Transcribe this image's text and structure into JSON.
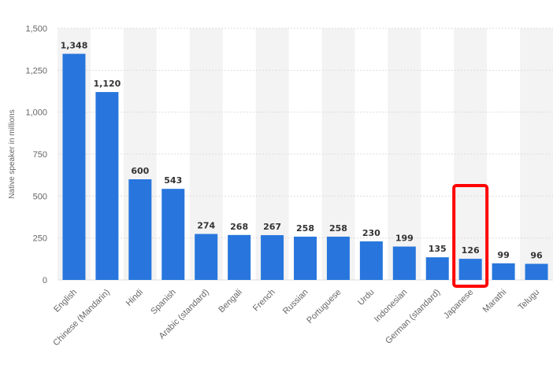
{
  "chart_data": {
    "type": "bar",
    "title": "",
    "xlabel": "",
    "ylabel": "Native speaker in millions",
    "ylim": [
      0,
      1500
    ],
    "yticks": [
      "0",
      "250",
      "500",
      "750",
      "1,000",
      "1,250",
      "1,500"
    ],
    "ytick_values": [
      0,
      250,
      500,
      750,
      1000,
      1250,
      1500
    ],
    "categories": [
      "English",
      "Chinese (Mandarin)",
      "Hindi",
      "Spanish",
      "Arabic (standard)",
      "Bengali",
      "French",
      "Russian",
      "Portuguese",
      "Urdu",
      "Indonesian",
      "German (standard)",
      "Japanese",
      "Marathi",
      "Telugu"
    ],
    "values": [
      1348,
      1120,
      600,
      543,
      274,
      268,
      267,
      258,
      258,
      230,
      199,
      135,
      126,
      99,
      96
    ],
    "value_labels": [
      "1,348",
      "1,120",
      "600",
      "543",
      "274",
      "268",
      "267",
      "258",
      "258",
      "230",
      "199",
      "135",
      "126",
      "99",
      "96"
    ],
    "highlighted_category": "Japanese",
    "grid": true,
    "legend": "none",
    "colors": {
      "bar": "#2876dd",
      "band": "#f3f3f3",
      "grid": "#dddddd",
      "highlight": "#ff0000"
    }
  }
}
